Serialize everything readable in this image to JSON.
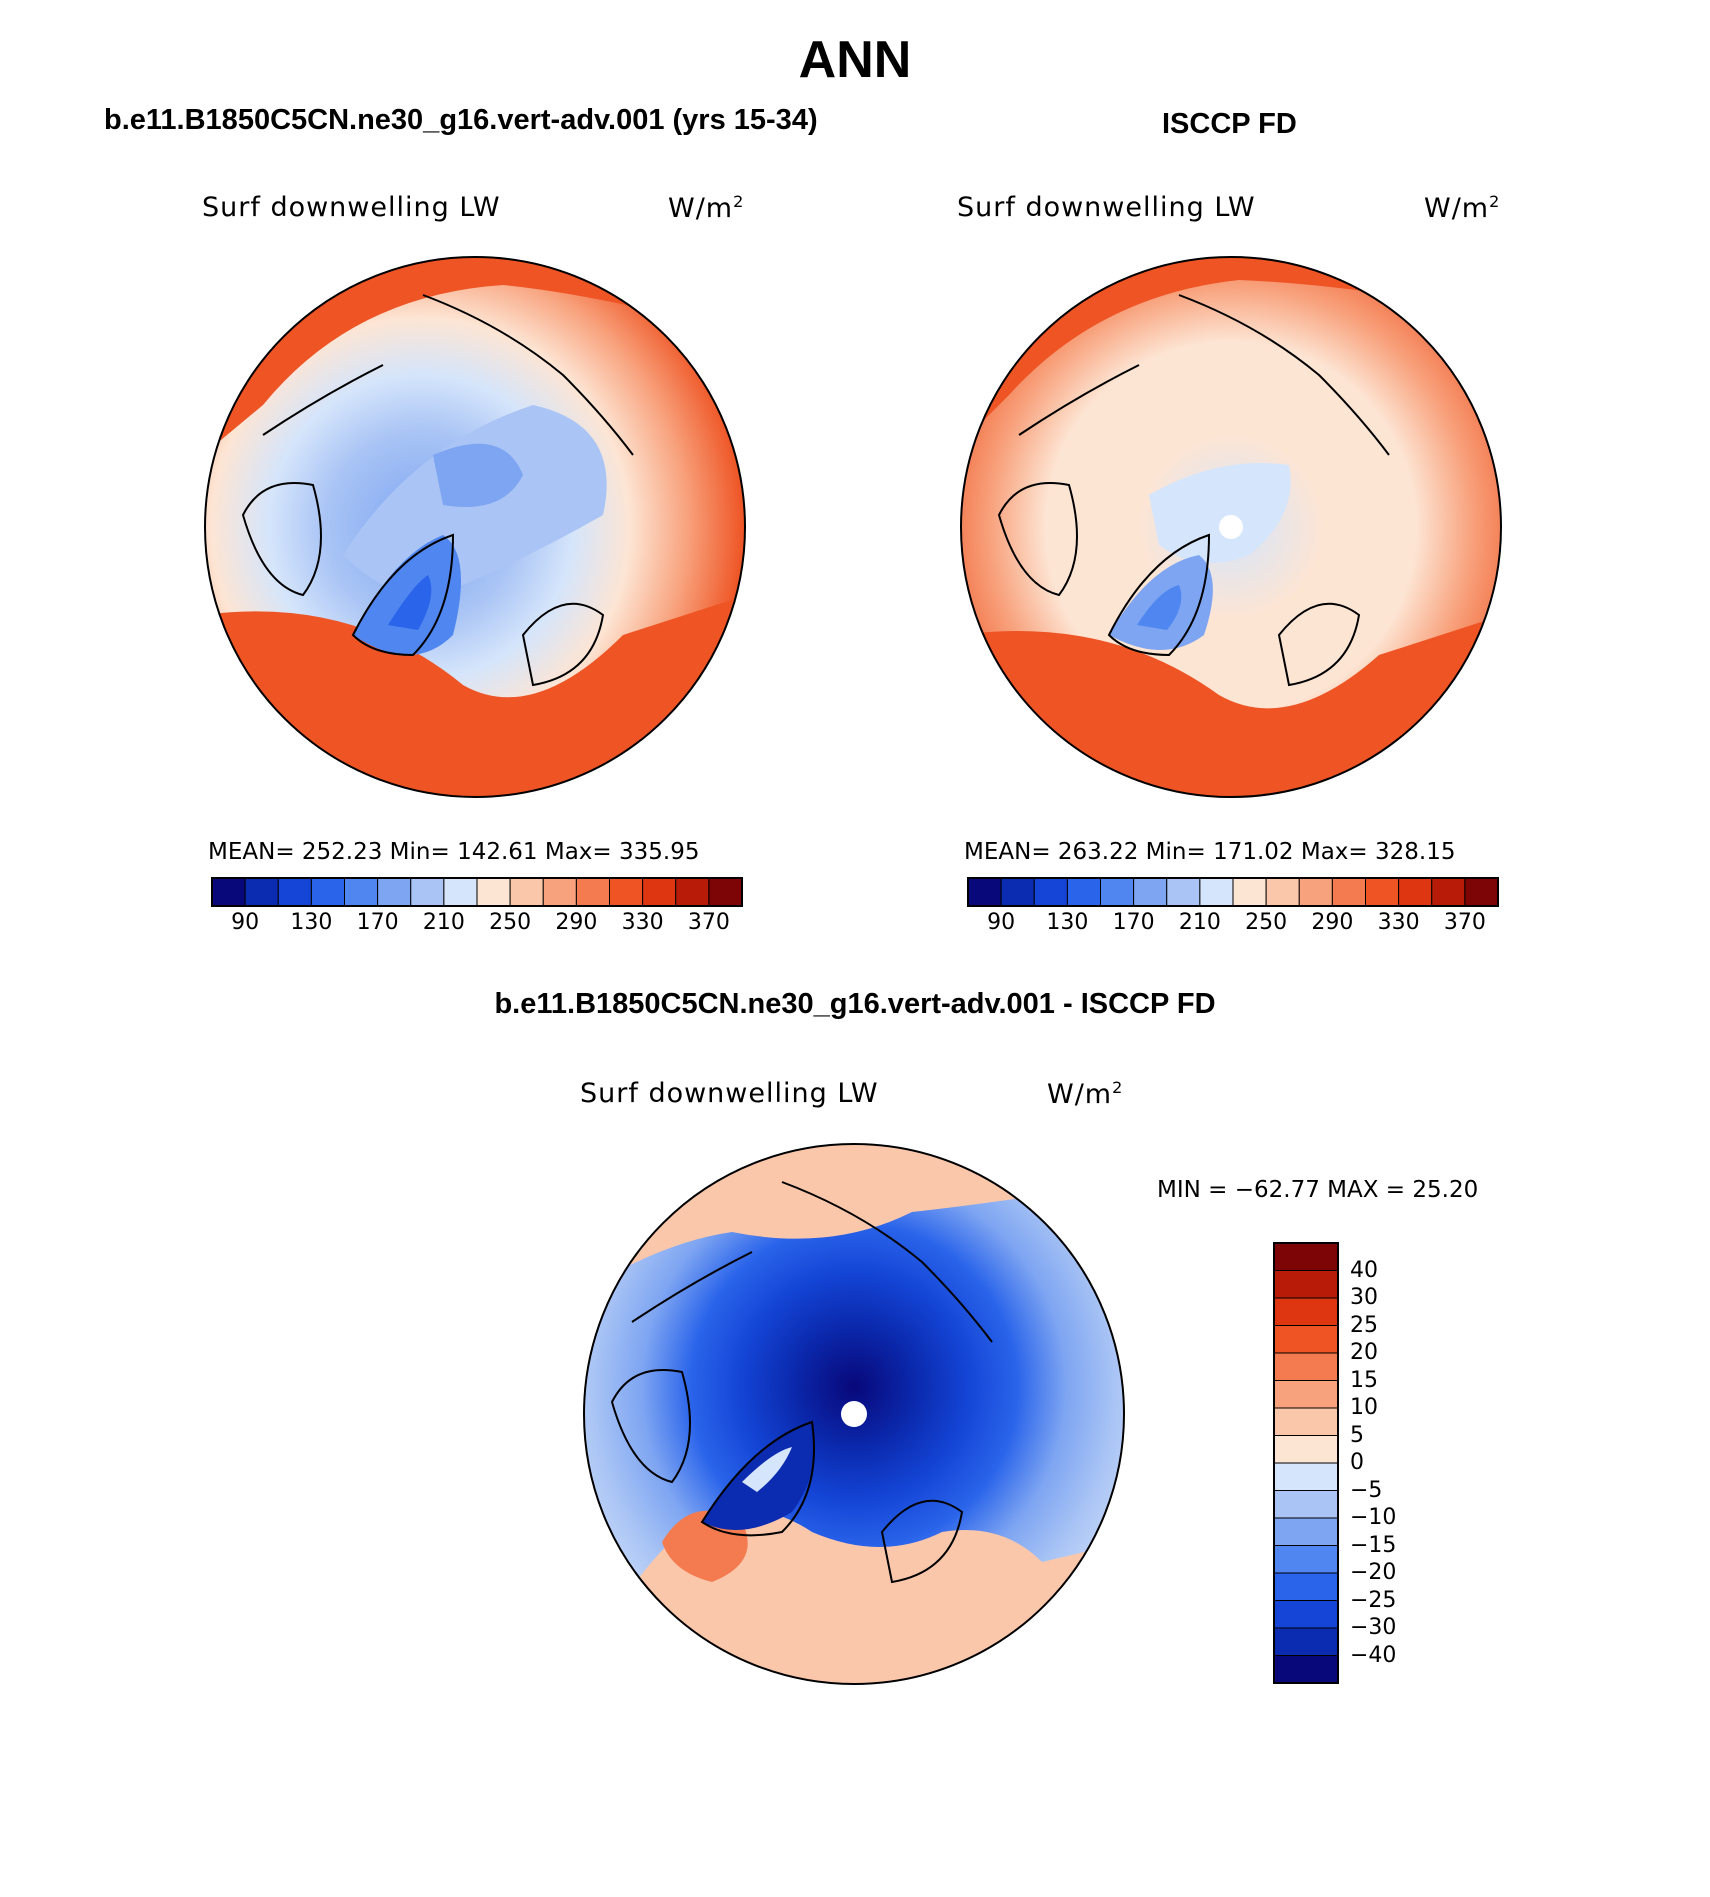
{
  "title": "ANN",
  "colors": {
    "scale_abs": [
      "#08087a",
      "#0b2bb0",
      "#1445d6",
      "#2a64ea",
      "#4f86f0",
      "#7ea5f2",
      "#a9c4f5",
      "#d5e5fb",
      "#fde5d4",
      "#fbc7ab",
      "#f8a27d",
      "#f47a50",
      "#ee5424",
      "#dd3610",
      "#b81c08",
      "#7d0505"
    ],
    "scale_diff": [
      "#08087a",
      "#0b2bb0",
      "#1445d6",
      "#2a64ea",
      "#4f86f0",
      "#7ea5f2",
      "#a9c4f5",
      "#d5e5fb",
      "#fde5d4",
      "#fbc7ab",
      "#f8a27d",
      "#f47a50",
      "#ee5424",
      "#dd3610",
      "#b81c08",
      "#7d0505"
    ],
    "coastline": "#000000"
  },
  "panels": [
    {
      "title": "b.e11.B1850C5CN.ne30_g16.vert-adv.001 (yrs 15-34)",
      "variable": "Surf downwelling LW",
      "units_base": "W/m",
      "units_exp": "2",
      "stats": "MEAN= 252.23   Min= 142.61   Max= 335.95",
      "colorbar_labels": [
        "90",
        "130",
        "170",
        "210",
        "250",
        "290",
        "330",
        "370"
      ]
    },
    {
      "title": "ISCCP FD",
      "variable": "Surf downwelling LW",
      "units_base": "W/m",
      "units_exp": "2",
      "stats": "MEAN= 263.22   Min= 171.02   Max= 328.15",
      "colorbar_labels": [
        "90",
        "130",
        "170",
        "210",
        "250",
        "290",
        "330",
        "370"
      ]
    },
    {
      "title": "b.e11.B1850C5CN.ne30_g16.vert-adv.001 - ISCCP FD",
      "variable": "Surf downwelling LW",
      "units_base": "W/m",
      "units_exp": "2",
      "stats": "MIN = −62.77 MAX =   25.20",
      "colorbar_labels": [
        "40",
        "30",
        "25",
        "20",
        "15",
        "10",
        "5",
        "0",
        "−5",
        "−10",
        "−15",
        "−20",
        "−25",
        "−30",
        "−40"
      ]
    }
  ]
}
